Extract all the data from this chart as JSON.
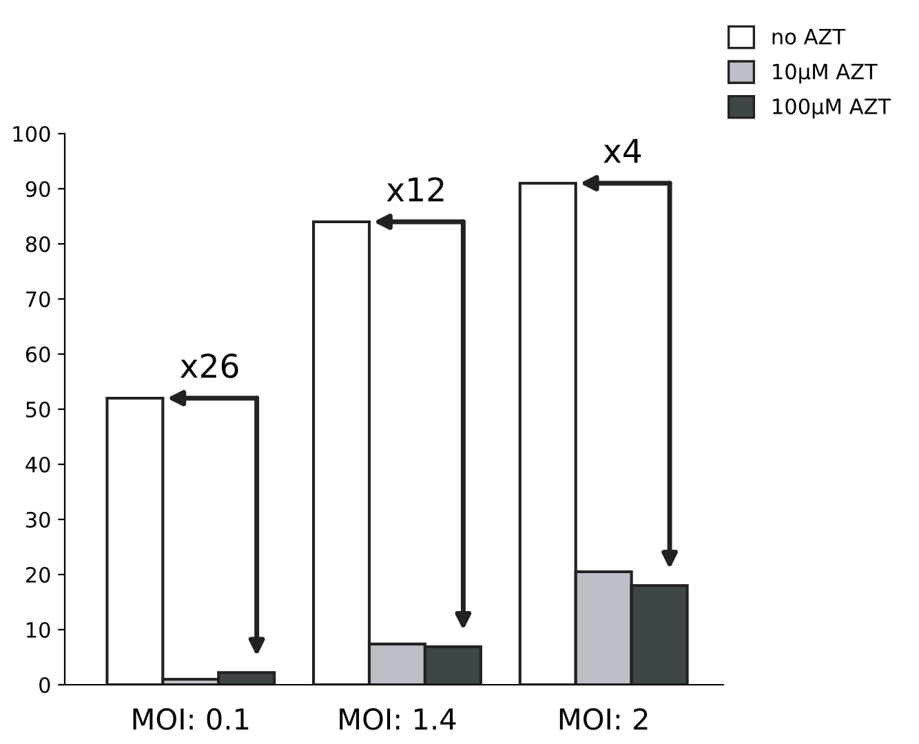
{
  "chart_data": {
    "type": "bar",
    "categories": [
      "MOI: 0.1",
      "MOI: 1.4",
      "MOI: 2"
    ],
    "series": [
      {
        "name": "no AZT",
        "color": "#ffffff",
        "values": [
          52,
          84,
          91
        ]
      },
      {
        "name": "10µM AZT",
        "color": "#bcc0c6",
        "values": [
          1,
          7.4,
          20.5
        ]
      },
      {
        "name": "100µM AZT",
        "color": "#3f4647",
        "values": [
          2.2,
          6.9,
          18
        ]
      }
    ],
    "ylim": [
      0,
      100
    ],
    "yticks": [
      0,
      10,
      20,
      30,
      40,
      50,
      60,
      70,
      80,
      90,
      100
    ],
    "grid": false,
    "legend": "top right",
    "annotations": [
      "x26",
      "x12",
      "x4"
    ]
  }
}
